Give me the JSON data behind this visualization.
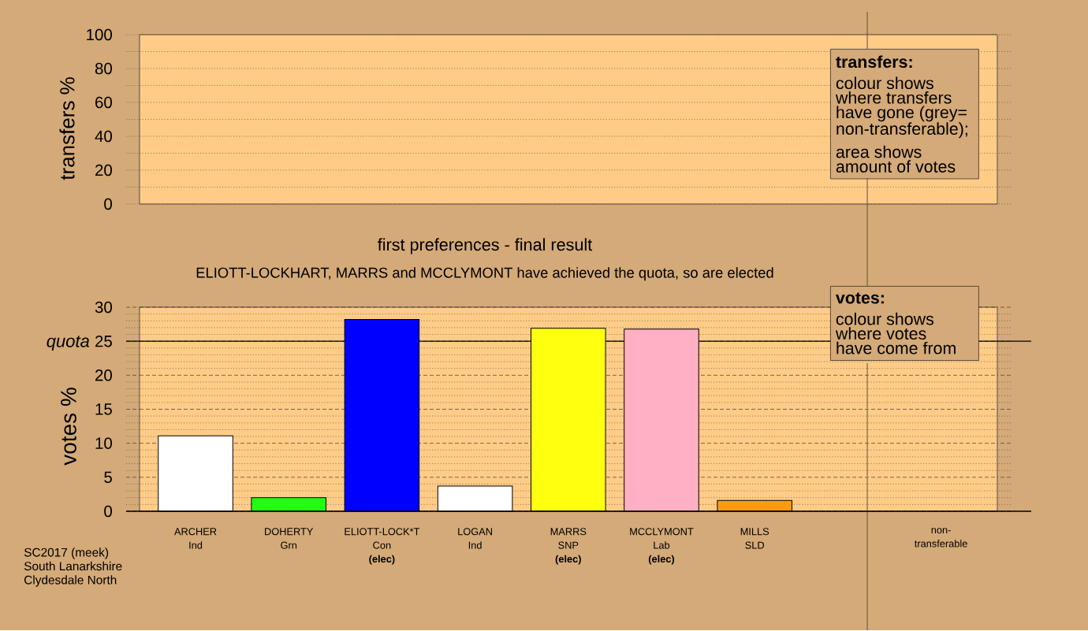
{
  "chart_data": [
    {
      "type": "bar",
      "ylabel": "transfers %",
      "categories": [
        null,
        null,
        null,
        null,
        null,
        null,
        null,
        null,
        null
      ],
      "values": [
        null,
        null,
        null,
        null,
        null,
        null,
        null,
        null,
        null
      ],
      "ylim": [
        0,
        100
      ],
      "yticks": [
        0,
        {
          "value": 10,
          "label": null
        },
        20,
        {
          "value": 30,
          "label": null
        },
        40,
        {
          "value": 50,
          "label": null
        },
        60,
        {
          "value": 70,
          "label": null
        },
        80,
        {
          "value": 90,
          "label": null
        },
        100
      ],
      "grid": "y",
      "tick_labels": "y",
      "annotations": [
        "transfers:",
        "colour shows where transfers have gone (grey= non-transferable);",
        "area shows amount of votes"
      ]
    },
    {
      "type": "bar",
      "title": "first preferences - final result",
      "subtitle": "ELIOTT-LOCKHART, MARRS and MCCLYMONT have achieved the quota, so are elected",
      "ylabel": "votes %",
      "categories": [
        "ARCHER Ind",
        "DOHERTY Grn",
        "ELIOTT-LOCK*T Con **(elec)**",
        "LOGAN Ind",
        "MARRS SNP **(elec)**",
        "MCCLYMONT Lab **(elec)**",
        "MILLS SLD",
        null,
        "non-transferable"
      ],
      "values": [
        11.1,
        2.0,
        28.2,
        3.7,
        26.9,
        26.8,
        1.6,
        null,
        null
      ],
      "colors": [
        "#ffffff",
        "#22ff10",
        "#0000ff",
        "#ffffff",
        "#ffff10",
        "#ffb0c4",
        "#ff9a10",
        null,
        null
      ],
      "ylim": [
        0,
        30
      ],
      "yticks": [
        0,
        {
          "value": 1,
          "label": null
        },
        {
          "value": 2,
          "label": null
        },
        {
          "value": 3,
          "label": null
        },
        {
          "value": 4,
          "label": null
        },
        5,
        {
          "value": 6,
          "label": null
        },
        {
          "value": 7,
          "label": null
        },
        {
          "value": 8,
          "label": null
        },
        {
          "value": 9,
          "label": null
        },
        10,
        {
          "value": 11,
          "label": null
        },
        {
          "value": 12,
          "label": null
        },
        {
          "value": 13,
          "label": null
        },
        {
          "value": 14,
          "label": null
        },
        15,
        {
          "value": 16,
          "label": null
        },
        {
          "value": 17,
          "label": null
        },
        {
          "value": 18,
          "label": null
        },
        {
          "value": 19,
          "label": null
        },
        20,
        {
          "value": 21,
          "label": null
        },
        {
          "value": 22,
          "label": null
        },
        {
          "value": 23,
          "label": null
        },
        {
          "value": 24,
          "label": null
        },
        25,
        {
          "value": 26,
          "label": null
        },
        {
          "value": 27,
          "label": null
        },
        {
          "value": 28,
          "label": null
        },
        {
          "value": 29,
          "label": null
        },
        30
      ],
      "grid": "y",
      "ref_lines": [
        {
          "axis": "y",
          "value": 25,
          "label": "quota",
          "color": "#000000"
        }
      ],
      "annotations": [
        "votes:",
        "colour shows where votes have come from",
        "SC2017 (meek)",
        "South Lanarkshire",
        "Clydesdale North"
      ]
    }
  ]
}
